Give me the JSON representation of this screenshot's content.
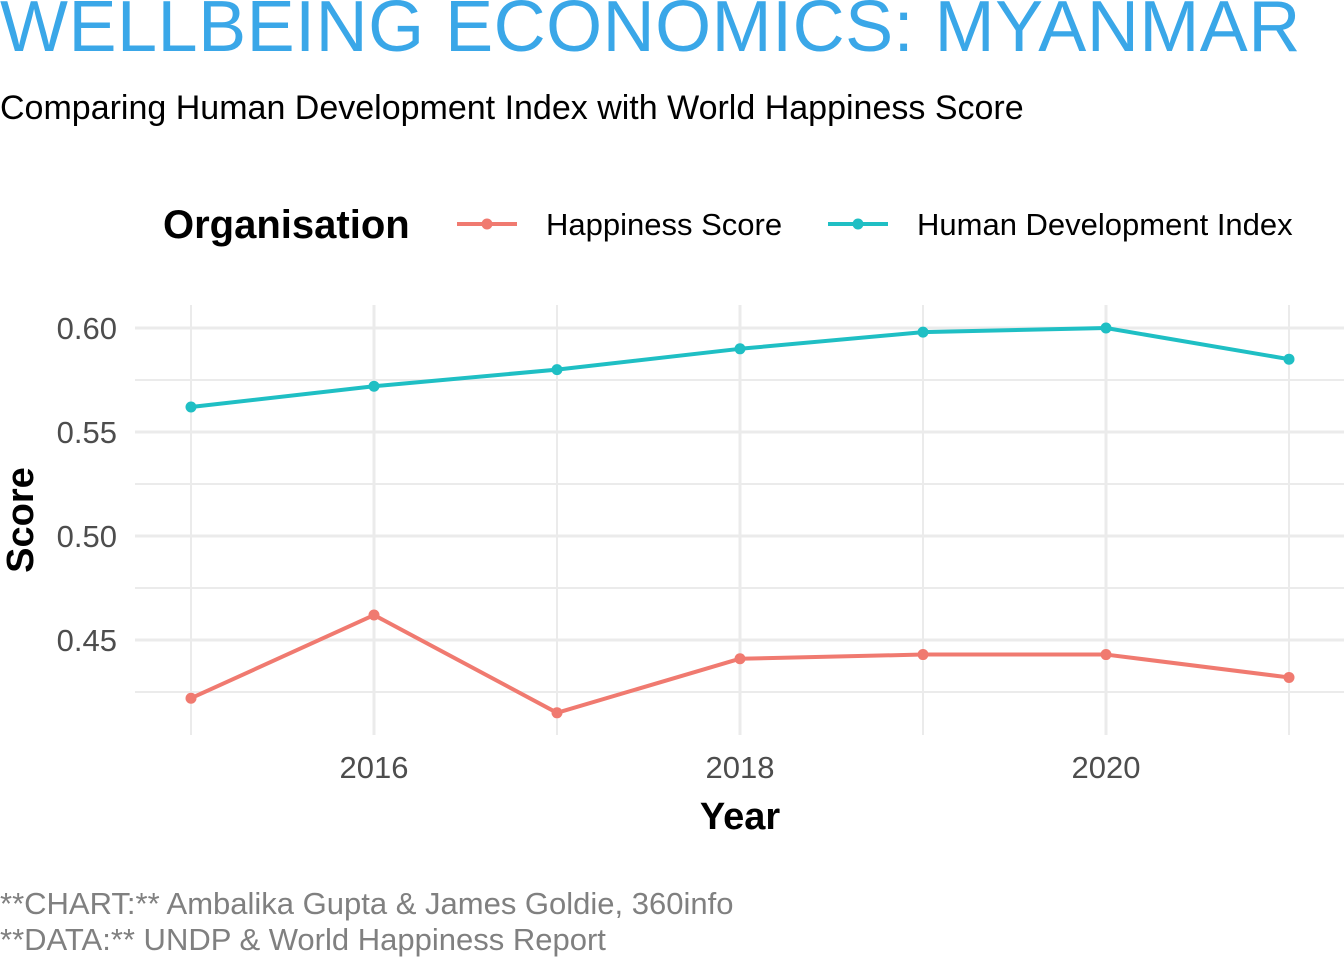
{
  "header": {
    "title": "WELLBEING ECONOMICS: MYANMAR",
    "subtitle": "Comparing Human Development Index with World Happiness Score"
  },
  "caption": {
    "line1": "**CHART:** Ambalika Gupta & James Goldie, 360info",
    "line2": "**DATA:** UNDP & World Happiness Report"
  },
  "chart_data": {
    "type": "line",
    "xlabel": "Year",
    "ylabel": "Score",
    "xlim": [
      2015,
      2021
    ],
    "ylim": [
      0.414,
      0.602
    ],
    "x_ticks": [
      2016,
      2018,
      2020
    ],
    "y_ticks": [
      0.45,
      0.5,
      0.55,
      0.6
    ],
    "y_tick_labels": [
      "0.45",
      "0.50",
      "0.55",
      "0.60"
    ],
    "grid": true,
    "legend": {
      "title": "Organisation",
      "position": "top"
    },
    "x": [
      2015,
      2016,
      2017,
      2018,
      2019,
      2020,
      2021
    ],
    "series": [
      {
        "name": "Happiness Score",
        "color": "#f07a70",
        "values": [
          0.422,
          0.462,
          0.415,
          0.441,
          0.443,
          0.443,
          0.432
        ]
      },
      {
        "name": "Human Development Index",
        "color": "#1fbfc4",
        "values": [
          0.562,
          0.572,
          0.58,
          0.59,
          0.598,
          0.6,
          0.585
        ]
      }
    ]
  }
}
